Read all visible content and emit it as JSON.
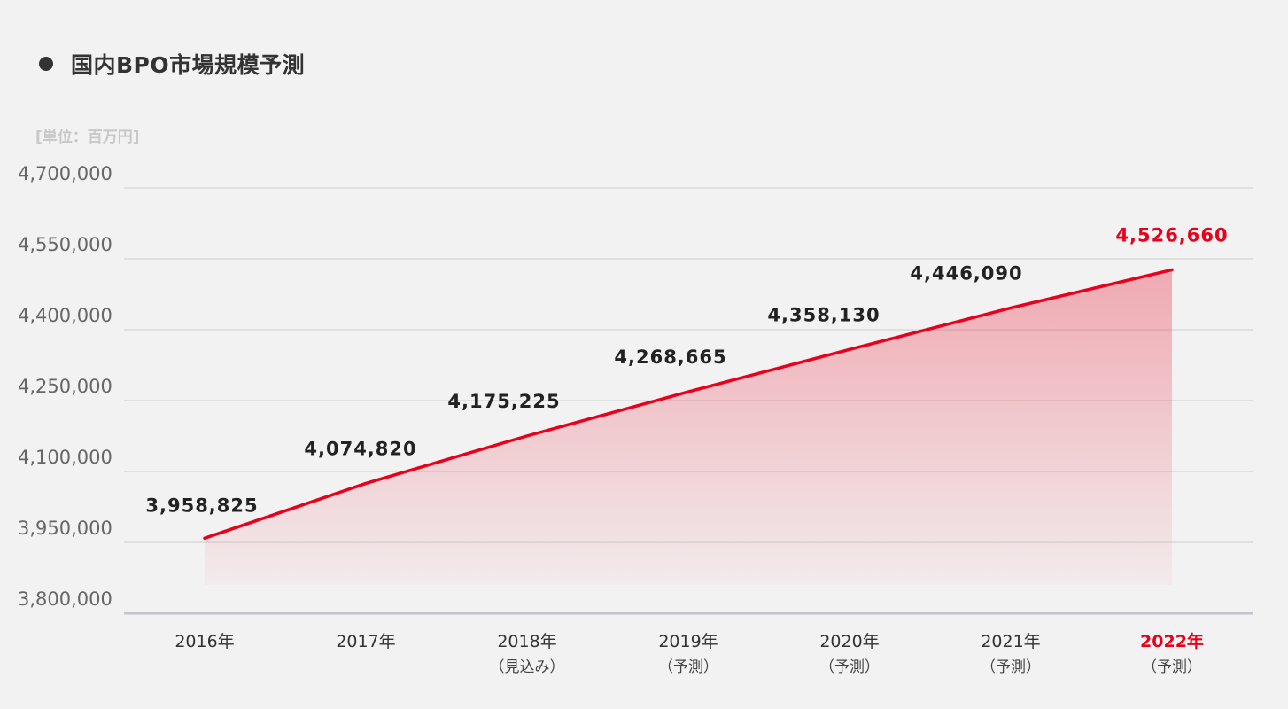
{
  "title": "国内BPO市場規模予測",
  "unit_label": "[単位：百万円]",
  "colors": {
    "line": "#e8001c",
    "highlight": "#e8001c",
    "grid": "#cfcfcf",
    "background": "#f2f2f2"
  },
  "chart_data": {
    "type": "area",
    "title": "国内BPO市場規模予測",
    "ylabel": "[単位：百万円]",
    "xlabel": "",
    "ylim": [
      3800000,
      4700000
    ],
    "yticks": [
      "4,700,000",
      "4,550,000",
      "4,400,000",
      "4,250,000",
      "4,100,000",
      "3,950,000",
      "3,800,000"
    ],
    "ytick_values": [
      4700000,
      4550000,
      4400000,
      4250000,
      4100000,
      3950000,
      3800000
    ],
    "grid": true,
    "categories": [
      {
        "year": "2016年",
        "note": ""
      },
      {
        "year": "2017年",
        "note": ""
      },
      {
        "year": "2018年",
        "note": "（見込み）"
      },
      {
        "year": "2019年",
        "note": "（予測）"
      },
      {
        "year": "2020年",
        "note": "（予測）"
      },
      {
        "year": "2021年",
        "note": "（予測）"
      },
      {
        "year": "2022年",
        "note": "（予測）"
      }
    ],
    "values": [
      3958825,
      4074820,
      4175225,
      4268665,
      4358130,
      4446090,
      4526660
    ],
    "value_labels": [
      "3,958,825",
      "4,074,820",
      "4,175,225",
      "4,268,665",
      "4,358,130",
      "4,446,090",
      "4,526,660"
    ],
    "highlight_index": 6
  }
}
